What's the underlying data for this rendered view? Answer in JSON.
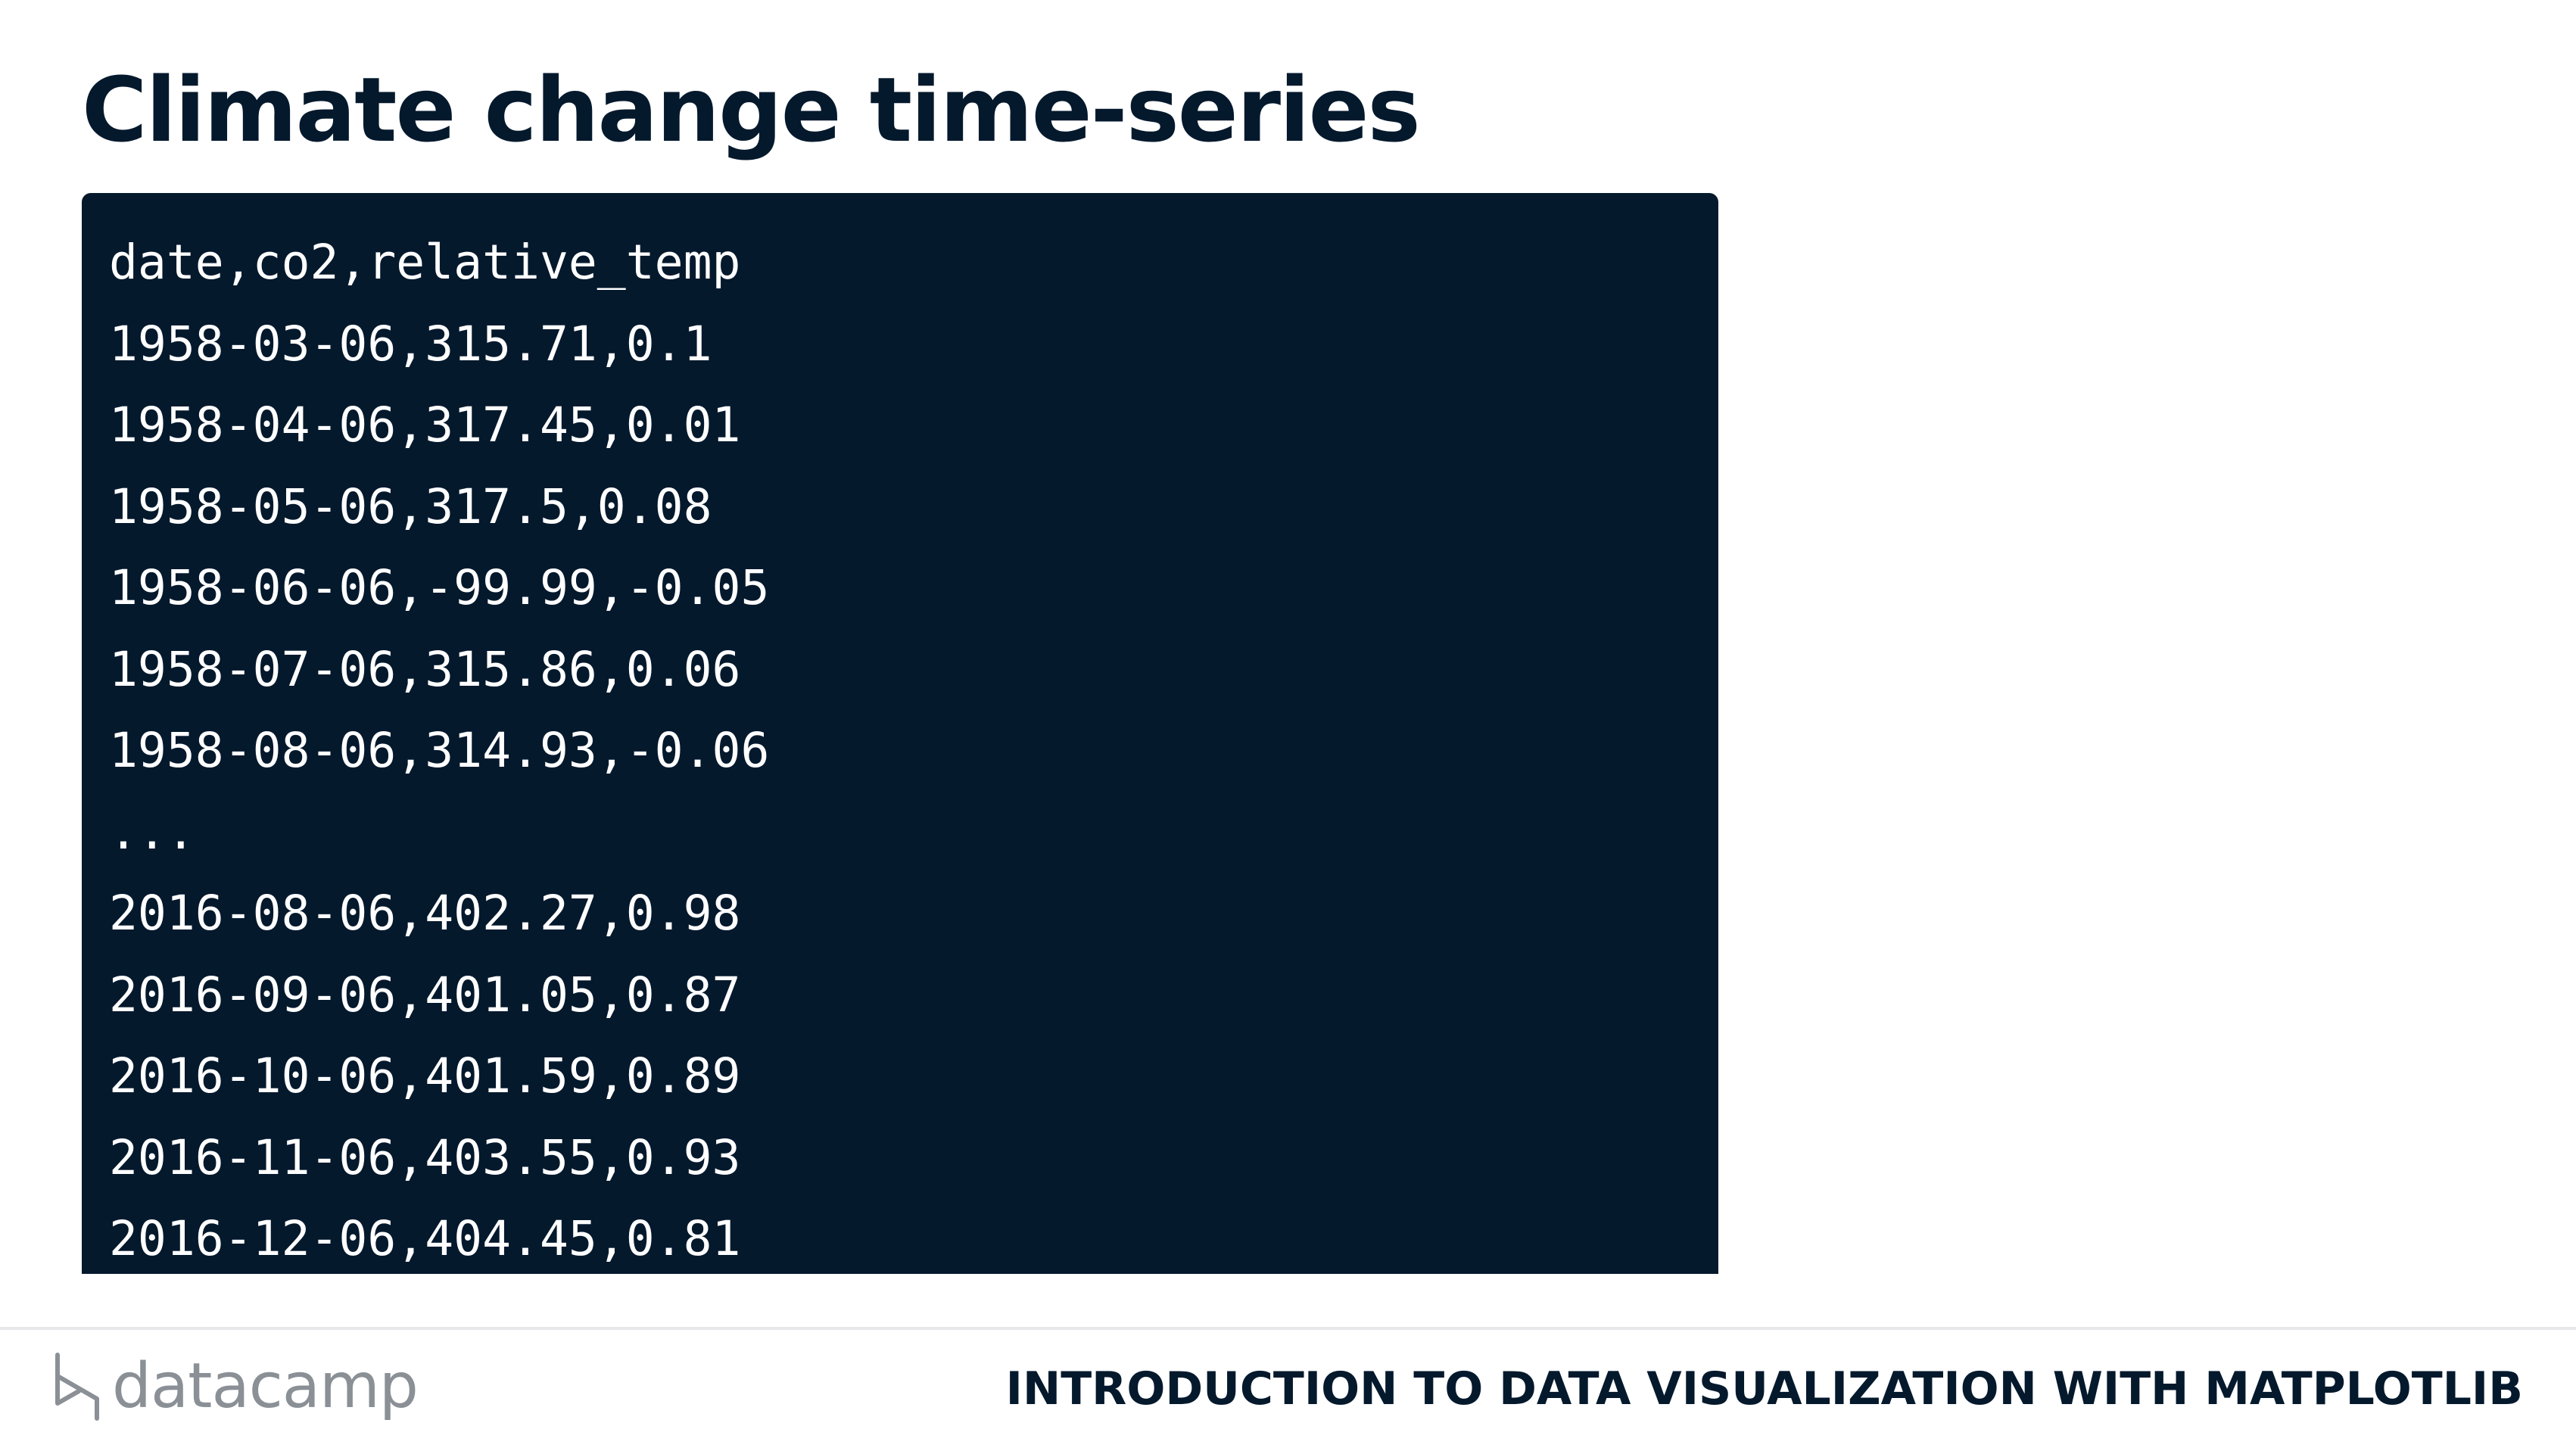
{
  "slide": {
    "title": "Climate change time-series"
  },
  "code_block": {
    "lines": [
      "date,co2,relative_temp",
      "1958-03-06,315.71,0.1",
      "1958-04-06,317.45,0.01",
      "1958-05-06,317.5,0.08",
      "1958-06-06,-99.99,-0.05",
      "1958-07-06,315.86,0.06",
      "1958-08-06,314.93,-0.06",
      "...",
      "2016-08-06,402.27,0.98",
      "2016-09-06,401.05,0.87",
      "2016-10-06,401.59,0.89",
      "2016-11-06,403.55,0.93",
      "2016-12-06,404.45,0.81"
    ]
  },
  "footer": {
    "logo_text": "datacamp",
    "course_title": "INTRODUCTION TO DATA VISUALIZATION WITH MATPLOTLIB"
  },
  "colors": {
    "navy": "#05192d",
    "logo_gray": "#8a9096",
    "divider": "#e8e8ea"
  }
}
